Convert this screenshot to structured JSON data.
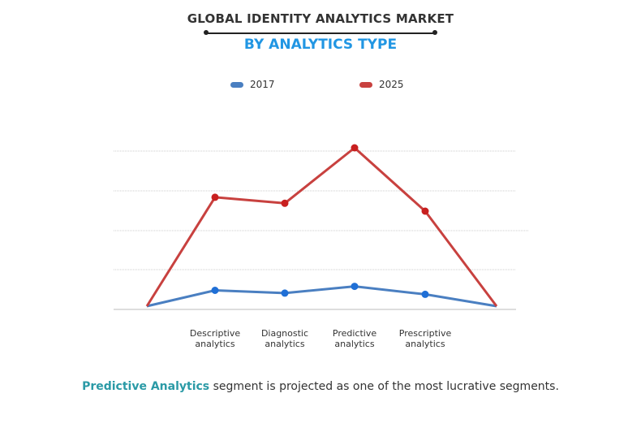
{
  "chart_data": {
    "type": "line",
    "title": "GLOBAL IDENTITY ANALYTICS MARKET",
    "subtitle": "BY ANALYTICS TYPE",
    "categories": [
      "",
      "Descriptive analytics",
      "Diagnostic analytics",
      "Predictive analytics",
      "Prescriptive analytics",
      ""
    ],
    "tick_labels": [
      {
        "line1": "Descriptive",
        "line2": "analytics"
      },
      {
        "line1": "Diagnostic",
        "line2": "analytics"
      },
      {
        "line1": "Predictive",
        "line2": "analytics"
      },
      {
        "line1": "Prescriptive",
        "line2": "analytics"
      }
    ],
    "series": [
      {
        "name": "2017",
        "color": "#4a7fc1",
        "values": [
          0,
          4,
          3.3,
          5,
          3,
          0
        ]
      },
      {
        "name": "2025",
        "color": "#c8413f",
        "values": [
          0,
          27.5,
          26,
          40,
          24,
          0
        ]
      }
    ],
    "ylim": [
      0,
      40
    ],
    "xlabel": "",
    "ylabel": "",
    "grid": true,
    "legend": "top-center"
  },
  "caption": {
    "highlight": "Predictive Analytics",
    "rest": " segment is projected as one of the most lucrative segments."
  }
}
